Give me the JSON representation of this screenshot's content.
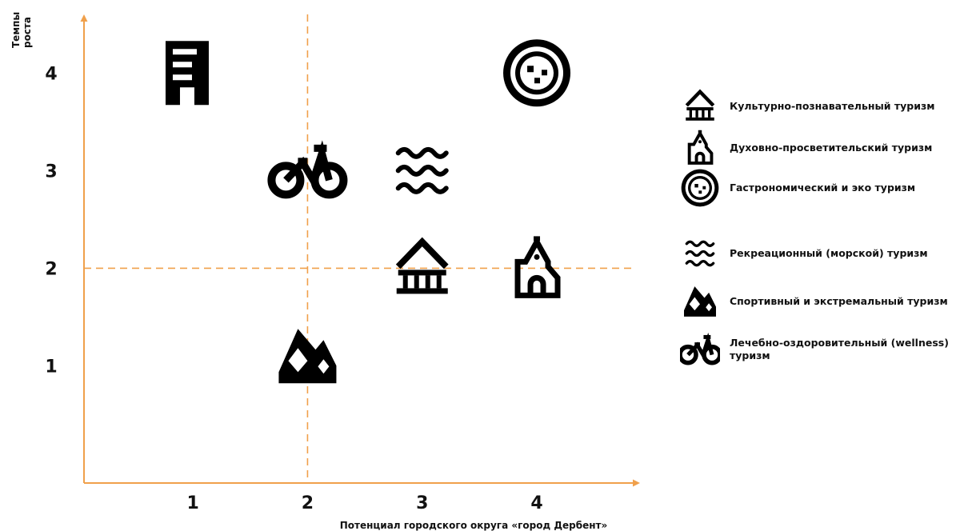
{
  "colors": {
    "axis": "#F0A04B",
    "icon": "#000000"
  },
  "chart_data": {
    "type": "scatter",
    "xlabel": "Потенциал городского округа  «город Дербент»",
    "ylabel": "Темпы роста",
    "ylabel_lines": [
      "Темпы",
      "роста"
    ],
    "x_ticks": [
      "1",
      "2",
      "3",
      "4"
    ],
    "y_ticks": [
      "1",
      "2",
      "3",
      "4"
    ],
    "xlim": [
      0.05,
      4.9
    ],
    "ylim": [
      -0.2,
      4.6
    ],
    "divider_lines": {
      "x": 2,
      "y": 2
    },
    "points": [
      {
        "icon": "building-icon",
        "x": 0.95,
        "y": 4.0
      },
      {
        "icon": "plate-icon",
        "x": 4.0,
        "y": 4.0
      },
      {
        "icon": "bicycle-icon",
        "x": 2.0,
        "y": 3.0
      },
      {
        "icon": "waves-icon",
        "x": 3.0,
        "y": 3.0
      },
      {
        "icon": "house-icon",
        "x": 3.0,
        "y": 2.0
      },
      {
        "icon": "church-icon",
        "x": 4.0,
        "y": 2.0
      },
      {
        "icon": "mountain-icon",
        "x": 2.0,
        "y": 1.1
      }
    ],
    "legend": [
      {
        "icon": "house-icon",
        "label": "Культурно-познавательный туризм"
      },
      {
        "icon": "church-icon",
        "label": "Духовно-просветительский туризм"
      },
      {
        "icon": "plate-icon",
        "label": "Гастрономический и эко туризм"
      },
      {
        "icon": "waves-icon",
        "label": "Рекреационный (морской) туризм"
      },
      {
        "icon": "mountain-icon",
        "label": "Спортивный и экстремальный туризм"
      },
      {
        "icon": "bicycle-icon",
        "label": "Лечебно-оздоровительный (wellness) туризм"
      }
    ]
  }
}
